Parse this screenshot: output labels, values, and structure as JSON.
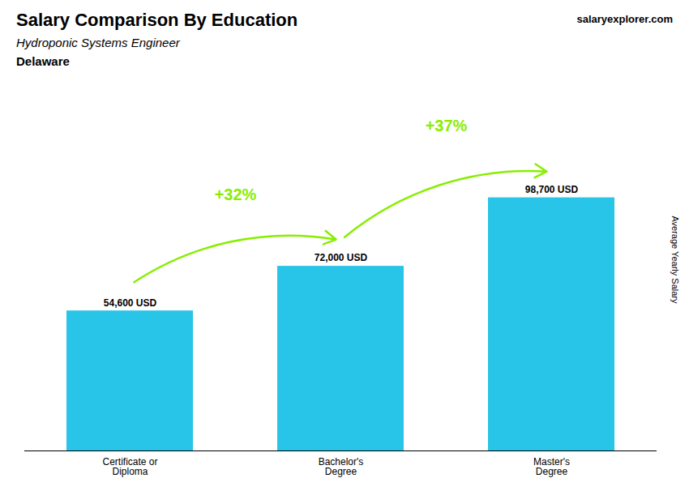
{
  "chart_data": {
    "type": "bar",
    "title": "Salary Comparison By Education",
    "subtitle": "Hydroponic Systems Engineer",
    "ylabel": "Average Yearly Salary",
    "categories": [
      "Certificate or\nDiploma",
      "Bachelor's\nDegree",
      "Master's\nDegree"
    ],
    "values": [
      54600,
      72000,
      98700
    ],
    "value_labels": [
      "54,600 USD",
      "72,000 USD",
      "98,700 USD"
    ],
    "data_labels": true,
    "color": "#29c5e8",
    "ylim": [
      0,
      115000
    ],
    "tick_labels": "x",
    "grid": false,
    "annotations": [
      {
        "text": "Delaware"
      },
      {
        "text": "salaryexplorer.com"
      },
      {
        "text": "+32%",
        "from": "Certificate or\nDiploma",
        "to": "Bachelor's\nDegree",
        "color": "#88ee00"
      },
      {
        "text": "+37%",
        "from": "Bachelor's\nDegree",
        "to": "Master's\nDegree",
        "color": "#88ee00"
      }
    ]
  }
}
